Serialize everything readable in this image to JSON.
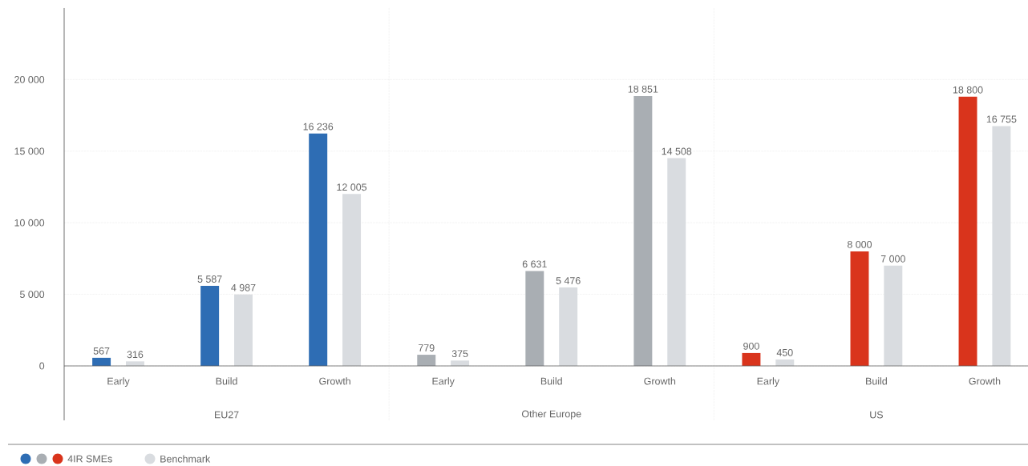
{
  "chart_data": {
    "type": "bar",
    "categories": [
      "Early",
      "Build",
      "Growth",
      "Early",
      "Build",
      "Growth",
      "Early",
      "Build",
      "Growth"
    ],
    "series": [
      {
        "name": "4IR SMEs",
        "colors": [
          "#2e6db4",
          "#2e6db4",
          "#2e6db4",
          "#a9aeb3",
          "#a9aeb3",
          "#a9aeb3",
          "#d9341c",
          "#d9341c",
          "#d9341c"
        ],
        "values": [
          567,
          5587,
          16236,
          779,
          6631,
          18851,
          900,
          8000,
          18800
        ],
        "value_labels": [
          "567",
          "5 587",
          "16 236",
          "779",
          "6 631",
          "18 851",
          "900",
          "8 000",
          "18 800"
        ]
      },
      {
        "name": "Benchmark",
        "color": "#d9dce0",
        "values": [
          316,
          4987,
          12005,
          375,
          5476,
          14508,
          450,
          7000,
          16755
        ],
        "value_labels": [
          "316",
          "4 987",
          "12 005",
          "375",
          "5 476",
          "14 508",
          "450",
          "7 000",
          "16 755"
        ]
      }
    ],
    "annotations": [
      "EU27",
      "Other Europe",
      "US"
    ],
    "ylim": [
      0,
      25000
    ],
    "yticks": [
      {
        "value": 0,
        "label": "0"
      },
      {
        "value": 5000,
        "label": "5 000"
      },
      {
        "value": 10000,
        "label": "10 000"
      },
      {
        "value": 15000,
        "label": "15 000"
      },
      {
        "value": 20000,
        "label": "20 000"
      }
    ],
    "grid": "y",
    "legend": "bottom left"
  }
}
